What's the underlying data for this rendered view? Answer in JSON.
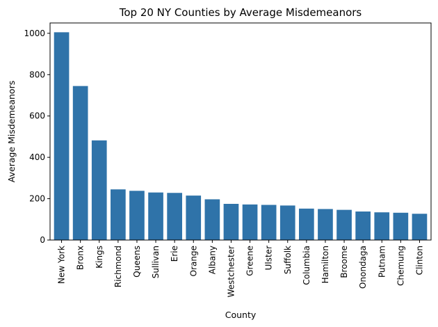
{
  "chart_data": {
    "type": "bar",
    "title": "Top 20 NY Counties by Average Misdemeanors",
    "xlabel": "County",
    "ylabel": "Average Misdemeanors",
    "ylim": [
      0,
      1050
    ],
    "yticks": [
      0,
      200,
      400,
      600,
      800,
      1000
    ],
    "grid": false,
    "legend": "none",
    "bar_color": "#2f73a9",
    "categories": [
      "New York",
      "Bronx",
      "Kings",
      "Richmond",
      "Queens",
      "Sullivan",
      "Erie",
      "Orange",
      "Albany",
      "Westchester",
      "Greene",
      "Ulster",
      "Suffolk",
      "Columbia",
      "Hamilton",
      "Broome",
      "Onondaga",
      "Putnam",
      "Chemung",
      "Clinton"
    ],
    "values": [
      1005,
      745,
      482,
      245,
      238,
      230,
      228,
      215,
      197,
      175,
      172,
      170,
      167,
      152,
      150,
      146,
      138,
      134,
      132,
      127
    ]
  }
}
